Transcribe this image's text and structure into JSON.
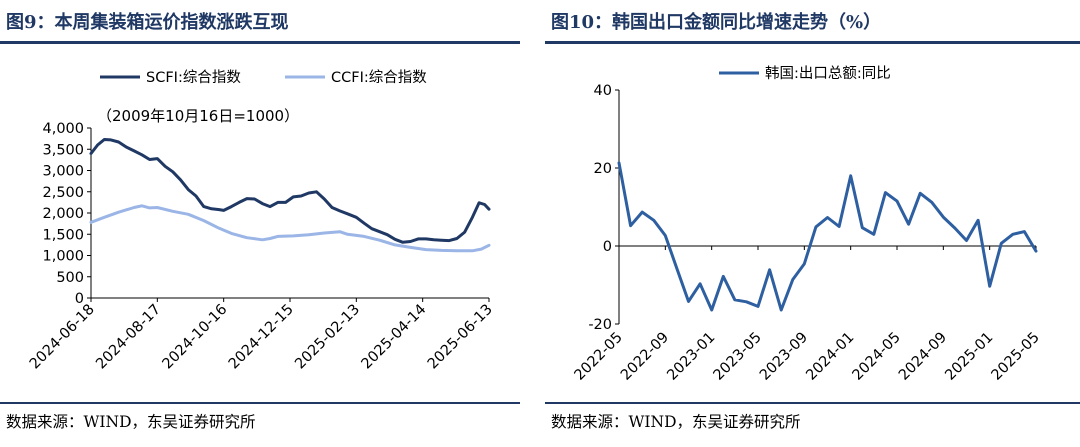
{
  "panels": [
    {
      "title": "图9：本周集装箱运价指数涨跌互现",
      "source": "数据来源：WIND，东吴证券研究所"
    },
    {
      "title": "图10：韩国出口金额同比增速走势（%）",
      "source": "数据来源：WIND，东吴证券研究所"
    }
  ],
  "chart_data": [
    {
      "type": "line",
      "annotation": "（2009年10月16日=1000）",
      "ylim": [
        0,
        4000
      ],
      "yticks": [
        0,
        500,
        1000,
        1500,
        2000,
        2500,
        3000,
        3500,
        4000
      ],
      "ytick_labels": [
        "0",
        "500",
        "1,000",
        "1,500",
        "2,000",
        "2,500",
        "3,000",
        "3,500",
        "4,000"
      ],
      "xlim": [
        "2024-06-18",
        "2025-06-13"
      ],
      "xticks": [
        "2024-06-18",
        "2024-08-17",
        "2024-10-16",
        "2024-12-15",
        "2025-02-13",
        "2025-04-14",
        "2025-06-13"
      ],
      "legend_position": "top",
      "series": [
        {
          "name": "SCFI:综合指数",
          "color": "#1f3864",
          "points": [
            [
              "2024-06-18",
              3400
            ],
            [
              "2024-06-24",
              3600
            ],
            [
              "2024-06-30",
              3730
            ],
            [
              "2024-07-06",
              3720
            ],
            [
              "2024-07-13",
              3670
            ],
            [
              "2024-07-20",
              3550
            ],
            [
              "2024-07-27",
              3460
            ],
            [
              "2024-08-03",
              3370
            ],
            [
              "2024-08-10",
              3260
            ],
            [
              "2024-08-17",
              3280
            ],
            [
              "2024-08-24",
              3100
            ],
            [
              "2024-08-31",
              2970
            ],
            [
              "2024-09-07",
              2780
            ],
            [
              "2024-09-14",
              2550
            ],
            [
              "2024-09-21",
              2400
            ],
            [
              "2024-09-28",
              2150
            ],
            [
              "2024-10-05",
              2100
            ],
            [
              "2024-10-12",
              2080
            ],
            [
              "2024-10-16",
              2060
            ],
            [
              "2024-10-23",
              2150
            ],
            [
              "2024-10-30",
              2250
            ],
            [
              "2024-11-06",
              2340
            ],
            [
              "2024-11-13",
              2330
            ],
            [
              "2024-11-20",
              2220
            ],
            [
              "2024-11-27",
              2150
            ],
            [
              "2024-12-04",
              2250
            ],
            [
              "2024-12-11",
              2250
            ],
            [
              "2024-12-18",
              2380
            ],
            [
              "2024-12-25",
              2400
            ],
            [
              "2025-01-01",
              2470
            ],
            [
              "2025-01-08",
              2500
            ],
            [
              "2025-01-15",
              2330
            ],
            [
              "2025-01-22",
              2130
            ],
            [
              "2025-01-29",
              2050
            ],
            [
              "2025-02-05",
              1980
            ],
            [
              "2025-02-13",
              1900
            ],
            [
              "2025-02-20",
              1760
            ],
            [
              "2025-02-27",
              1630
            ],
            [
              "2025-03-06",
              1560
            ],
            [
              "2025-03-13",
              1490
            ],
            [
              "2025-03-20",
              1380
            ],
            [
              "2025-03-27",
              1310
            ],
            [
              "2025-04-03",
              1330
            ],
            [
              "2025-04-10",
              1390
            ],
            [
              "2025-04-17",
              1390
            ],
            [
              "2025-04-24",
              1370
            ],
            [
              "2025-05-01",
              1360
            ],
            [
              "2025-05-08",
              1350
            ],
            [
              "2025-05-15",
              1400
            ],
            [
              "2025-05-22",
              1550
            ],
            [
              "2025-05-29",
              1900
            ],
            [
              "2025-06-04",
              2240
            ],
            [
              "2025-06-09",
              2200
            ],
            [
              "2025-06-13",
              2090
            ]
          ]
        },
        {
          "name": "CCFI:综合指数",
          "color": "#9ab5e6",
          "points": [
            [
              "2024-06-18",
              1780
            ],
            [
              "2024-06-30",
              1900
            ],
            [
              "2024-07-13",
              2020
            ],
            [
              "2024-07-27",
              2130
            ],
            [
              "2024-08-03",
              2170
            ],
            [
              "2024-08-10",
              2120
            ],
            [
              "2024-08-17",
              2130
            ],
            [
              "2024-08-31",
              2040
            ],
            [
              "2024-09-14",
              1970
            ],
            [
              "2024-09-28",
              1820
            ],
            [
              "2024-10-12",
              1640
            ],
            [
              "2024-10-23",
              1520
            ],
            [
              "2024-11-06",
              1420
            ],
            [
              "2024-11-20",
              1370
            ],
            [
              "2024-11-27",
              1400
            ],
            [
              "2024-12-04",
              1450
            ],
            [
              "2024-12-18",
              1460
            ],
            [
              "2025-01-01",
              1490
            ],
            [
              "2025-01-15",
              1530
            ],
            [
              "2025-01-29",
              1560
            ],
            [
              "2025-02-05",
              1500
            ],
            [
              "2025-02-20",
              1450
            ],
            [
              "2025-03-06",
              1360
            ],
            [
              "2025-03-20",
              1250
            ],
            [
              "2025-04-03",
              1190
            ],
            [
              "2025-04-17",
              1140
            ],
            [
              "2025-05-01",
              1120
            ],
            [
              "2025-05-15",
              1110
            ],
            [
              "2025-05-29",
              1110
            ],
            [
              "2025-06-06",
              1150
            ],
            [
              "2025-06-13",
              1240
            ]
          ]
        }
      ]
    },
    {
      "type": "line",
      "ylim": [
        -20,
        40
      ],
      "yticks": [
        -20,
        0,
        20,
        40
      ],
      "ytick_labels": [
        "-20",
        "0",
        "20",
        "40"
      ],
      "xlim": [
        "2022-05",
        "2025-05"
      ],
      "xticks": [
        "2022-05",
        "2022-09",
        "2023-01",
        "2023-05",
        "2023-09",
        "2024-01",
        "2024-05",
        "2024-09",
        "2025-01",
        "2025-05"
      ],
      "legend_position": "top",
      "series": [
        {
          "name": "韩国:出口总额:同比",
          "color": "#2e5fa0",
          "points": [
            [
              "2022-05",
              21.3
            ],
            [
              "2022-06",
              5.2
            ],
            [
              "2022-07",
              8.7
            ],
            [
              "2022-08",
              6.6
            ],
            [
              "2022-09",
              2.7
            ],
            [
              "2022-10",
              -5.8
            ],
            [
              "2022-11",
              -14.2
            ],
            [
              "2022-12",
              -9.7
            ],
            [
              "2023-01",
              -16.4
            ],
            [
              "2023-02",
              -7.8
            ],
            [
              "2023-03",
              -13.8
            ],
            [
              "2023-04",
              -14.3
            ],
            [
              "2023-05",
              -15.5
            ],
            [
              "2023-06",
              -6.1
            ],
            [
              "2023-07",
              -16.4
            ],
            [
              "2023-08",
              -8.6
            ],
            [
              "2023-09",
              -4.6
            ],
            [
              "2023-10",
              4.9
            ],
            [
              "2023-11",
              7.3
            ],
            [
              "2023-12",
              5.0
            ],
            [
              "2024-01",
              18.0
            ],
            [
              "2024-02",
              4.7
            ],
            [
              "2024-03",
              3.0
            ],
            [
              "2024-04",
              13.7
            ],
            [
              "2024-05",
              11.5
            ],
            [
              "2024-06",
              5.6
            ],
            [
              "2024-07",
              13.5
            ],
            [
              "2024-08",
              11.2
            ],
            [
              "2024-09",
              7.4
            ],
            [
              "2024-10",
              4.6
            ],
            [
              "2024-11",
              1.4
            ],
            [
              "2024-12",
              6.6
            ],
            [
              "2025-01",
              -10.3
            ],
            [
              "2025-02",
              0.7
            ],
            [
              "2025-03",
              3.0
            ],
            [
              "2025-04",
              3.7
            ],
            [
              "2025-05",
              -1.3
            ]
          ]
        }
      ]
    }
  ]
}
